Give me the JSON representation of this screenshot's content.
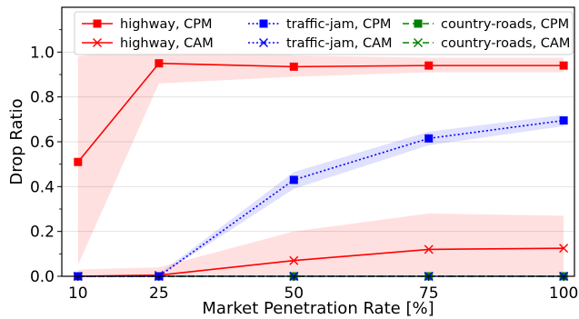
{
  "chart_data": {
    "type": "line",
    "title": "",
    "xlabel": "Market Penetration Rate [%]",
    "ylabel": "Drop Ratio",
    "x": [
      10,
      25,
      50,
      75,
      100
    ],
    "xticks": [
      "10",
      "25",
      "50",
      "75",
      "100"
    ],
    "xlim": [
      7,
      102
    ],
    "ylim": [
      0,
      1.2
    ],
    "yticks": [
      "0.0",
      "0.2",
      "0.4",
      "0.6",
      "0.8",
      "1.0"
    ],
    "grid": "horizontal",
    "legend_position": "top",
    "series": [
      {
        "name": "highway, CPM",
        "color": "#ff0000",
        "marker": "square",
        "linestyle": "solid",
        "values": [
          0.51,
          0.95,
          0.935,
          0.94,
          0.94
        ],
        "band_lower": [
          0.05,
          0.86,
          0.89,
          0.91,
          0.91
        ],
        "band_upper": [
          0.98,
          1.04,
          0.985,
          0.975,
          0.975
        ]
      },
      {
        "name": "highway, CAM",
        "color": "#ff0000",
        "marker": "x",
        "linestyle": "solid",
        "values": [
          0.0,
          0.005,
          0.07,
          0.12,
          0.125
        ],
        "band_lower": [
          0.0,
          0.0,
          0.0,
          0.0,
          0.0
        ],
        "band_upper": [
          0.03,
          0.04,
          0.2,
          0.28,
          0.27
        ]
      },
      {
        "name": "traffic-jam, CPM",
        "color": "#0000ff",
        "marker": "square",
        "linestyle": "dotted",
        "values": [
          0.0,
          0.0,
          0.43,
          0.615,
          0.695
        ],
        "band_lower": [
          0.0,
          0.0,
          0.39,
          0.585,
          0.67
        ],
        "band_upper": [
          0.0,
          0.01,
          0.465,
          0.645,
          0.72
        ]
      },
      {
        "name": "traffic-jam, CAM",
        "color": "#0000ff",
        "marker": "x",
        "linestyle": "dotted",
        "values": [
          0.0,
          0.0,
          0.0,
          0.0,
          0.0
        ]
      },
      {
        "name": "country-roads, CPM",
        "color": "#008000",
        "marker": "square",
        "linestyle": "dashed",
        "values": [
          0.0,
          0.0,
          0.0,
          0.0,
          0.0
        ]
      },
      {
        "name": "country-roads, CAM",
        "color": "#008000",
        "marker": "x",
        "linestyle": "dashed",
        "values": [
          0.0,
          0.0,
          0.0,
          0.0,
          0.0
        ]
      }
    ]
  }
}
